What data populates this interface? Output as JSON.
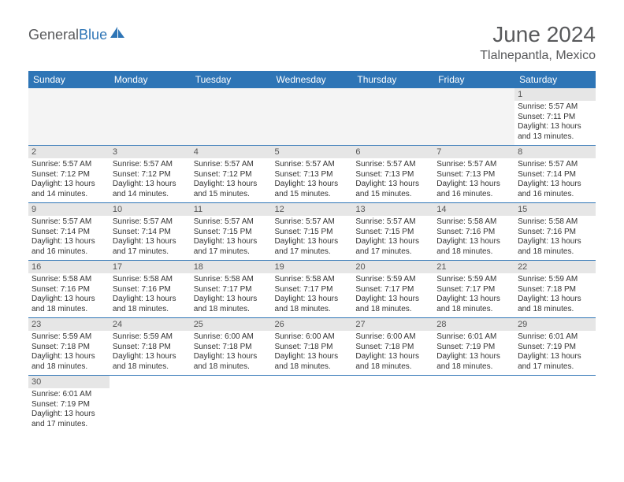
{
  "brand": {
    "part1": "General",
    "part2": "Blue"
  },
  "title": "June 2024",
  "location": "Tlalnepantla, Mexico",
  "header_color": "#2e75b6",
  "daynum_bg": "#e6e6e6",
  "weekdays": [
    "Sunday",
    "Monday",
    "Tuesday",
    "Wednesday",
    "Thursday",
    "Friday",
    "Saturday"
  ],
  "grid": [
    [
      null,
      null,
      null,
      null,
      null,
      null,
      {
        "n": "1",
        "sr": "5:57 AM",
        "ss": "7:11 PM",
        "dl": "13 hours and 13 minutes."
      }
    ],
    [
      {
        "n": "2",
        "sr": "5:57 AM",
        "ss": "7:12 PM",
        "dl": "13 hours and 14 minutes."
      },
      {
        "n": "3",
        "sr": "5:57 AM",
        "ss": "7:12 PM",
        "dl": "13 hours and 14 minutes."
      },
      {
        "n": "4",
        "sr": "5:57 AM",
        "ss": "7:12 PM",
        "dl": "13 hours and 15 minutes."
      },
      {
        "n": "5",
        "sr": "5:57 AM",
        "ss": "7:13 PM",
        "dl": "13 hours and 15 minutes."
      },
      {
        "n": "6",
        "sr": "5:57 AM",
        "ss": "7:13 PM",
        "dl": "13 hours and 15 minutes."
      },
      {
        "n": "7",
        "sr": "5:57 AM",
        "ss": "7:13 PM",
        "dl": "13 hours and 16 minutes."
      },
      {
        "n": "8",
        "sr": "5:57 AM",
        "ss": "7:14 PM",
        "dl": "13 hours and 16 minutes."
      }
    ],
    [
      {
        "n": "9",
        "sr": "5:57 AM",
        "ss": "7:14 PM",
        "dl": "13 hours and 16 minutes."
      },
      {
        "n": "10",
        "sr": "5:57 AM",
        "ss": "7:14 PM",
        "dl": "13 hours and 17 minutes."
      },
      {
        "n": "11",
        "sr": "5:57 AM",
        "ss": "7:15 PM",
        "dl": "13 hours and 17 minutes."
      },
      {
        "n": "12",
        "sr": "5:57 AM",
        "ss": "7:15 PM",
        "dl": "13 hours and 17 minutes."
      },
      {
        "n": "13",
        "sr": "5:57 AM",
        "ss": "7:15 PM",
        "dl": "13 hours and 17 minutes."
      },
      {
        "n": "14",
        "sr": "5:58 AM",
        "ss": "7:16 PM",
        "dl": "13 hours and 18 minutes."
      },
      {
        "n": "15",
        "sr": "5:58 AM",
        "ss": "7:16 PM",
        "dl": "13 hours and 18 minutes."
      }
    ],
    [
      {
        "n": "16",
        "sr": "5:58 AM",
        "ss": "7:16 PM",
        "dl": "13 hours and 18 minutes."
      },
      {
        "n": "17",
        "sr": "5:58 AM",
        "ss": "7:16 PM",
        "dl": "13 hours and 18 minutes."
      },
      {
        "n": "18",
        "sr": "5:58 AM",
        "ss": "7:17 PM",
        "dl": "13 hours and 18 minutes."
      },
      {
        "n": "19",
        "sr": "5:58 AM",
        "ss": "7:17 PM",
        "dl": "13 hours and 18 minutes."
      },
      {
        "n": "20",
        "sr": "5:59 AM",
        "ss": "7:17 PM",
        "dl": "13 hours and 18 minutes."
      },
      {
        "n": "21",
        "sr": "5:59 AM",
        "ss": "7:17 PM",
        "dl": "13 hours and 18 minutes."
      },
      {
        "n": "22",
        "sr": "5:59 AM",
        "ss": "7:18 PM",
        "dl": "13 hours and 18 minutes."
      }
    ],
    [
      {
        "n": "23",
        "sr": "5:59 AM",
        "ss": "7:18 PM",
        "dl": "13 hours and 18 minutes."
      },
      {
        "n": "24",
        "sr": "5:59 AM",
        "ss": "7:18 PM",
        "dl": "13 hours and 18 minutes."
      },
      {
        "n": "25",
        "sr": "6:00 AM",
        "ss": "7:18 PM",
        "dl": "13 hours and 18 minutes."
      },
      {
        "n": "26",
        "sr": "6:00 AM",
        "ss": "7:18 PM",
        "dl": "13 hours and 18 minutes."
      },
      {
        "n": "27",
        "sr": "6:00 AM",
        "ss": "7:18 PM",
        "dl": "13 hours and 18 minutes."
      },
      {
        "n": "28",
        "sr": "6:01 AM",
        "ss": "7:19 PM",
        "dl": "13 hours and 18 minutes."
      },
      {
        "n": "29",
        "sr": "6:01 AM",
        "ss": "7:19 PM",
        "dl": "13 hours and 17 minutes."
      }
    ],
    [
      {
        "n": "30",
        "sr": "6:01 AM",
        "ss": "7:19 PM",
        "dl": "13 hours and 17 minutes."
      },
      null,
      null,
      null,
      null,
      null,
      null
    ]
  ],
  "labels": {
    "sunrise": "Sunrise:",
    "sunset": "Sunset:",
    "daylight": "Daylight:"
  }
}
